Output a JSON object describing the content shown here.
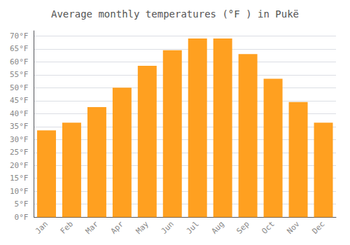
{
  "chart_data": {
    "type": "bar",
    "title": "Average monthly temperatures (°F ) in Pukë",
    "categories": [
      "Jan",
      "Feb",
      "Mar",
      "Apr",
      "May",
      "Jun",
      "Jul",
      "Aug",
      "Sep",
      "Oct",
      "Nov",
      "Dec"
    ],
    "values": [
      33.5,
      36.5,
      42.5,
      50.0,
      58.5,
      64.5,
      69.0,
      69.0,
      63.0,
      53.5,
      44.5,
      36.5
    ],
    "color": "#FFA020",
    "ylim": [
      0,
      72
    ],
    "yticks": [
      {
        "value": 0,
        "label": "0°F"
      },
      {
        "value": 5,
        "label": "5°F"
      },
      {
        "value": 10,
        "label": "10°F"
      },
      {
        "value": 15,
        "label": "15°F"
      },
      {
        "value": 20,
        "label": "20°F"
      },
      {
        "value": 25,
        "label": "25°F"
      },
      {
        "value": 30,
        "label": "30°F"
      },
      {
        "value": 35,
        "label": "35°F"
      },
      {
        "value": 40,
        "label": "40°F"
      },
      {
        "value": 45,
        "label": "45°F"
      },
      {
        "value": 50,
        "label": "50°F"
      },
      {
        "value": 55,
        "label": "55°F"
      },
      {
        "value": 60,
        "label": "60°F"
      },
      {
        "value": 65,
        "label": "65°F"
      },
      {
        "value": 70,
        "label": "70°F"
      }
    ],
    "grid": true
  }
}
